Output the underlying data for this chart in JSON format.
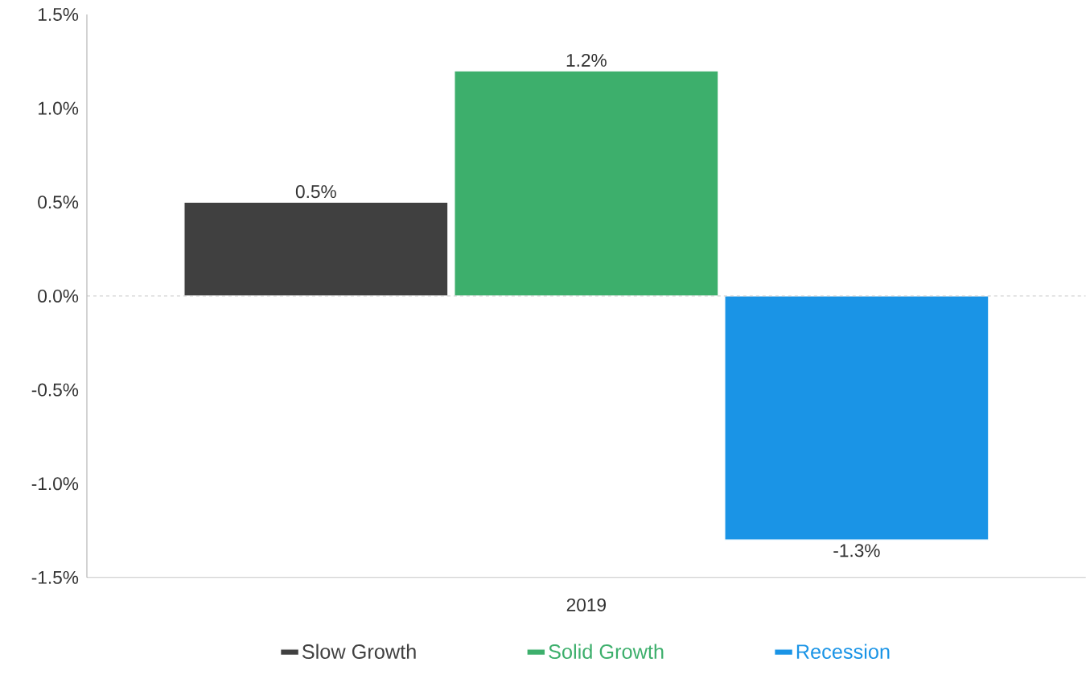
{
  "chart_data": {
    "type": "bar",
    "categories": [
      "2019"
    ],
    "series": [
      {
        "name": "Slow Growth",
        "color": "#404040",
        "values": [
          0.5
        ],
        "value_labels": [
          "0.5%"
        ]
      },
      {
        "name": "Solid Growth",
        "color": "#3daf6c",
        "values": [
          1.2
        ],
        "value_labels": [
          "1.2%"
        ]
      },
      {
        "name": "Recession",
        "color": "#1a94e6",
        "values": [
          -1.3
        ],
        "value_labels": [
          "-1.3%"
        ]
      }
    ],
    "ylim": [
      -1.5,
      1.5
    ],
    "yticks": [
      {
        "value": -1.5,
        "label": "-1.5%"
      },
      {
        "value": -1.0,
        "label": "-1.0%"
      },
      {
        "value": -0.5,
        "label": "-0.5%"
      },
      {
        "value": 0.0,
        "label": "0.0%"
      },
      {
        "value": 0.5,
        "label": "0.5%"
      },
      {
        "value": 1.0,
        "label": "1.0%"
      },
      {
        "value": 1.5,
        "label": "1.5%"
      }
    ],
    "ref_lines": [
      {
        "axis": "y",
        "value": 0,
        "color": "#bbbbbb",
        "line_style": "dashed"
      }
    ],
    "legend": "bottom",
    "grid": false
  }
}
